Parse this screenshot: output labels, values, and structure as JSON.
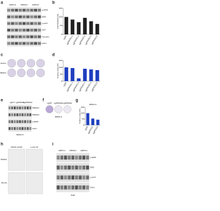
{
  "panels": [
    "a",
    "b",
    "c",
    "d",
    "e",
    "f",
    "g",
    "h",
    "i"
  ],
  "blot_a": {
    "columns": [
      "ARPC1",
      "PRKD1",
      "ARPC2"
    ],
    "rows": [
      "p-ERK",
      "ERK",
      "p-AKT",
      "AKT",
      "Vinculin",
      "Actin"
    ]
  },
  "chart_b": {
    "type": "bar",
    "ylabel": "Cell Number (%)",
    "categories": [
      "sgNT",
      "sgPRKD1-1",
      "sgPRKD1-2",
      "sgPRKD2-1",
      "sgPRKD2-2",
      "sgPRKD1/2"
    ],
    "values": [
      100,
      85,
      70,
      95,
      75,
      60
    ],
    "color": "#222222",
    "ylim": [
      0,
      150
    ],
    "yticks": [
      0,
      50,
      100,
      150
    ]
  },
  "dishes_c": {
    "rows": [
      "Vector",
      "sgPRKD1"
    ]
  },
  "chart_d": {
    "type": "bar",
    "ylabel": "Colony area (%)",
    "categories": [
      "sgNT",
      "sgPRKD1-1",
      "sgPRKD1-2",
      "sgPRKD2-1",
      "sgPRKD2-2",
      "sgPRKD1/2"
    ],
    "values": [
      100,
      95,
      20,
      90,
      85,
      80
    ],
    "color": "#1f3fbf",
    "ylim": [
      0,
      150
    ],
    "yticks": [
      0,
      50,
      100,
      150
    ]
  },
  "blot_e": {
    "columns": [
      "sgNT",
      "sgPRKD1",
      "sgPRKD2"
    ],
    "rows": [
      "PRKD1",
      "PRKD2",
      "p-ERK",
      "Actin"
    ],
    "footer": "RPAP-II"
  },
  "dishes_f": {
    "labels": [
      "sgNT",
      "sgPRKD1",
      "sgPRKD2"
    ],
    "footer": "RPAP-II"
  },
  "chart_g": {
    "type": "bar",
    "title": "RPAP-II",
    "ylabel": "Colony area (%)",
    "categories": [
      "sgNT",
      "sgPRKD1",
      "sgPRKD2"
    ],
    "values": [
      100,
      55,
      45
    ],
    "color": "#1f3fbf",
    "ylim": [
      0,
      150
    ],
    "yticks": [
      0,
      50,
      100,
      150
    ]
  },
  "micro_h": {
    "columns": [
      "KRAS G12D",
      "Lenti-V2"
    ],
    "rows": [
      "DMSO",
      "PF-04"
    ]
  },
  "blot_i": {
    "columns": [
      "ARPC1",
      "PRKD1",
      "ARPC2"
    ],
    "rows": [
      "p-ERK",
      "ERK",
      "p-AKT",
      "Actin"
    ],
    "footer": "Prkd"
  }
}
